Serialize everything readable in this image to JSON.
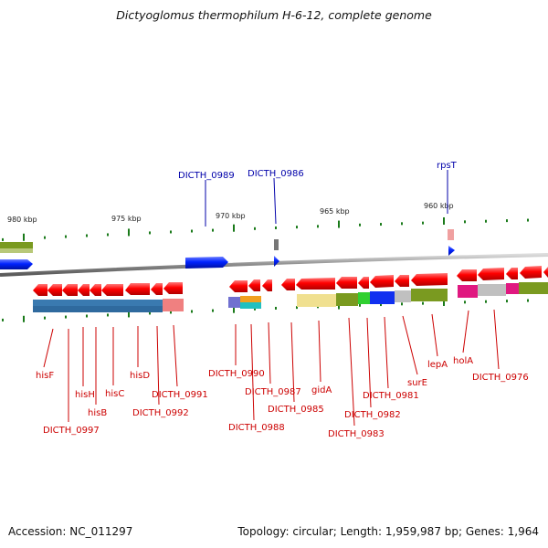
{
  "title": "Dictyoglomus thermophilum H-6-12, complete genome",
  "footer": {
    "accession": "Accession: NC_011297",
    "summary": "Topology: circular; Length: 1,959,987 bp; Genes: 1,964"
  },
  "ruler": [
    {
      "label": "980 kbp"
    },
    {
      "label": "975 kbp"
    },
    {
      "label": "970 kbp"
    },
    {
      "label": "965 kbp"
    },
    {
      "label": "960 kbp"
    }
  ],
  "genes_red": [
    {
      "label": "hisF"
    },
    {
      "label": "DICTH_0997"
    },
    {
      "label": "hisH"
    },
    {
      "label": "hisB"
    },
    {
      "label": "hisC"
    },
    {
      "label": "hisD"
    },
    {
      "label": "DICTH_0991"
    },
    {
      "label": "DICTH_0992"
    },
    {
      "label": "DICTH_0990"
    },
    {
      "label": "DICTH_0988"
    },
    {
      "label": "DICTH_0987"
    },
    {
      "label": "DICTH_0985"
    },
    {
      "label": "gidA"
    },
    {
      "label": "DICTH_0983"
    },
    {
      "label": "DICTH_0982"
    },
    {
      "label": "DICTH_0981"
    },
    {
      "label": "surE"
    },
    {
      "label": "lepA"
    },
    {
      "label": "holA"
    },
    {
      "label": "DICTH_0976"
    }
  ],
  "genes_blue": [
    {
      "label": "DICTH_0989"
    },
    {
      "label": "DICTH_0986"
    },
    {
      "label": "rpsT"
    }
  ],
  "colors": {
    "cds_reverse": "#ff0000",
    "cds_forward": "#0022ff",
    "backbone": "#888888",
    "tick": "#1a7a1a",
    "label_red": "#cc0000",
    "label_blue": "#0000aa"
  }
}
